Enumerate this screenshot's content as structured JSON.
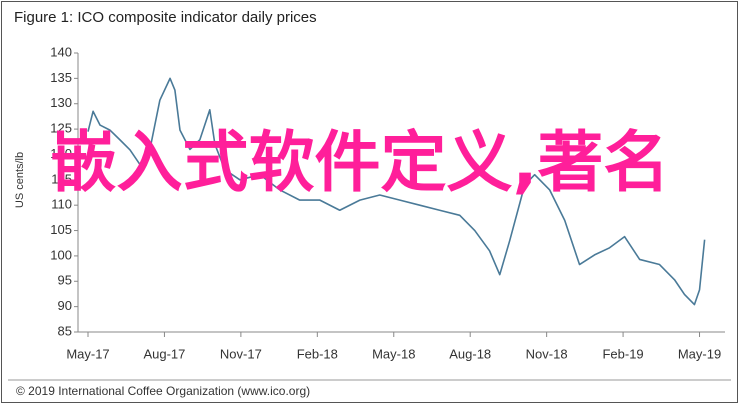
{
  "chart_data": {
    "type": "line",
    "title": "Figure 1: ICO composite indicator daily prices",
    "ylabel": "US cents/lb",
    "footer": "© 2019 International Coffee Organization (www.ico.org)",
    "overlay": "嵌入式软件定义,著名",
    "xlim": [
      0,
      25
    ],
    "xticks": [
      {
        "value": 0,
        "label": "May-17"
      },
      {
        "value": 3,
        "label": "Aug-17"
      },
      {
        "value": 6,
        "label": "Nov-17"
      },
      {
        "value": 9,
        "label": "Feb-18"
      },
      {
        "value": 12,
        "label": "May-18"
      },
      {
        "value": 15,
        "label": "Aug-18"
      },
      {
        "value": 18,
        "label": "Nov-18"
      },
      {
        "value": 21,
        "label": "Feb-19"
      },
      {
        "value": 24,
        "label": "May-19"
      }
    ],
    "ylim": [
      85,
      140
    ],
    "yticks": [
      85,
      90,
      95,
      100,
      105,
      110,
      115,
      120,
      125,
      130,
      135,
      140
    ],
    "x": [
      0,
      0.2,
      0.47,
      0.86,
      1.25,
      1.65,
      2.04,
      2.43,
      2.82,
      3.22,
      3.41,
      3.61,
      4.0,
      4.39,
      4.78,
      4.98,
      5.37,
      5.96,
      6.75,
      7.53,
      8.31,
      9.1,
      9.88,
      10.67,
      11.45,
      12.24,
      13.02,
      13.8,
      14.59,
      15.18,
      15.76,
      16.16,
      16.55,
      17.14,
      17.53,
      18.12,
      18.71,
      19.29,
      19.88,
      20.47,
      21.06,
      21.65,
      22.43,
      23.02,
      23.41,
      23.8,
      24.0,
      24.2
    ],
    "series": [
      {
        "color": "#4a7a98",
        "values": [
          124.5,
          128.5,
          125.8,
          124.8,
          122.9,
          120.9,
          118,
          121,
          130.7,
          135,
          132.7,
          124.8,
          121,
          122.9,
          128.8,
          122,
          117,
          115,
          116,
          113,
          111,
          111,
          109,
          111,
          112,
          111,
          110,
          109,
          108,
          105,
          101,
          96.3,
          103,
          114,
          116,
          113,
          107,
          98.3,
          100.2,
          101.6,
          103.8,
          99.3,
          98.3,
          95.3,
          92.4,
          90.4,
          93.3,
          103.2
        ]
      }
    ]
  }
}
